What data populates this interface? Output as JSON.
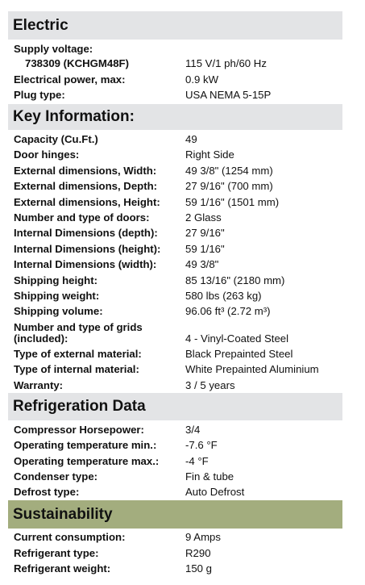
{
  "sections": {
    "electric": {
      "title": "Electric",
      "supply_voltage_label": "Supply voltage:",
      "model_label": "738309 (KCHGM48F)",
      "model_value": "115 V/1 ph/60 Hz",
      "power_label": "Electrical power, max:",
      "power_value": "0.9 kW",
      "plug_label": "Plug type:",
      "plug_value": "USA NEMA 5-15P"
    },
    "key_info": {
      "title": "Key Information:",
      "rows": [
        {
          "label": "Capacity (Cu.Ft.)",
          "value": "49"
        },
        {
          "label": "Door hinges:",
          "value": "Right Side"
        },
        {
          "label": "External dimensions, Width:",
          "value": "49 3/8\" (1254 mm)"
        },
        {
          "label": "External dimensions, Depth:",
          "value": "27 9/16\" (700 mm)"
        },
        {
          "label": "External dimensions, Height:",
          "value": "59 1/16\" (1501 mm)"
        },
        {
          "label": "Number and type of doors:",
          "value": "2 Glass"
        },
        {
          "label": "Internal Dimensions (depth):",
          "value": "27 9/16\""
        },
        {
          "label": "Internal Dimensions (height):",
          "value": "59 1/16\""
        },
        {
          "label": "Internal Dimensions (width):",
          "value": "49 3/8\""
        },
        {
          "label": "Shipping height:",
          "value": "85 13/16\" (2180 mm)"
        },
        {
          "label": "Shipping weight:",
          "value": "580 lbs (263 kg)"
        },
        {
          "label": "Shipping volume:",
          "value": "96.06 ft³ (2.72 m³)"
        }
      ],
      "grids_label_1": "Number and type of grids",
      "grids_label_2": "(included):",
      "grids_value": "4 - Vinyl-Coated Steel",
      "rows2": [
        {
          "label": "Type of external material:",
          "value": "Black Prepainted Steel"
        },
        {
          "label": "Type of internal material:",
          "value": "White Prepainted Aluminium"
        },
        {
          "label": "Warranty:",
          "value": "3 / 5 years"
        }
      ]
    },
    "refrigeration": {
      "title": "Refrigeration Data",
      "rows": [
        {
          "label": "Compressor Horsepower:",
          "value": "3/4"
        },
        {
          "label": "Operating temperature min.:",
          "value": "-7.6 °F"
        },
        {
          "label": "Operating temperature max.:",
          "value": "-4 °F"
        },
        {
          "label": "Condenser type:",
          "value": "Fin & tube"
        },
        {
          "label": "Defrost type:",
          "value": "Auto Defrost"
        }
      ]
    },
    "sustainability": {
      "title": "Sustainability",
      "rows": [
        {
          "label": "Current consumption:",
          "value": "9 Amps"
        },
        {
          "label": "Refrigerant type:",
          "value": "R290"
        },
        {
          "label": "Refrigerant weight:",
          "value": "150 g"
        }
      ]
    }
  },
  "colors": {
    "header_gray": "#e3e4e6",
    "header_green": "#a3ad7e"
  }
}
